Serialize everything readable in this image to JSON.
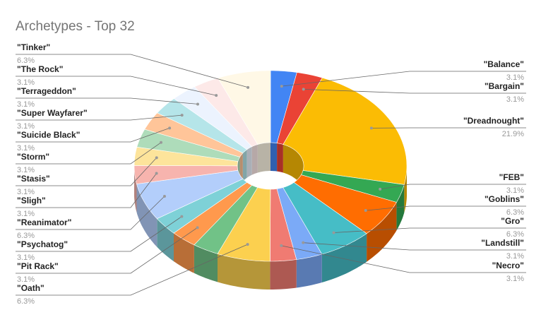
{
  "chart_data": {
    "type": "pie",
    "title": "Archetypes - Top 32",
    "categories": [
      "\"Balance\"",
      "\"Bargain\"",
      "\"Dreadnought\"",
      "\"FEB\"",
      "\"Goblins\"",
      "\"Gro\"",
      "\"Landstill\"",
      "\"Necro\"",
      "\"Oath\"",
      null,
      "\"Pit Rack\"",
      "\"Psychatog\"",
      "\"Reanimator\"",
      "\"Sligh\"",
      "\"Stasis\"",
      "\"Storm\"",
      "\"Suicide Black\"",
      "\"Super Wayfarer\"",
      "\"Terrageddon\"",
      "\"The Rock\"",
      "\"Tinker\""
    ],
    "values": [
      3.1,
      3.1,
      21.9,
      3.1,
      6.3,
      6.3,
      3.1,
      3.1,
      6.3,
      3.1,
      3.1,
      3.1,
      6.3,
      3.1,
      3.1,
      3.1,
      3.1,
      3.1,
      3.1,
      3.1,
      6.3
    ],
    "value_labels": [
      "3.1%",
      "3.1%",
      "21.9%",
      "3.1%",
      "6.3%",
      "6.3%",
      "3.1%",
      "3.1%",
      "6.3%",
      null,
      "3.1%",
      "3.1%",
      "6.3%",
      "3.1%",
      "3.1%",
      "3.1%",
      "3.1%",
      "3.1%",
      "3.1%",
      "3.1%",
      "6.3%"
    ],
    "colors": [
      "#4285f4",
      "#ea4335",
      "#fbbc04",
      "#34a853",
      "#ff6d01",
      "#46bdc6",
      "#7baaf7",
      "#f07b72",
      "#fcd04f",
      "#71c287",
      "#ff994d",
      "#7ed1d7",
      "#b3cefb",
      "#f7b4ae",
      "#fde49b",
      "#aedcba",
      "#ffc599",
      "#b5e5e9",
      "#ecf3fe",
      "#fde9e8",
      "#fff8e6"
    ]
  }
}
